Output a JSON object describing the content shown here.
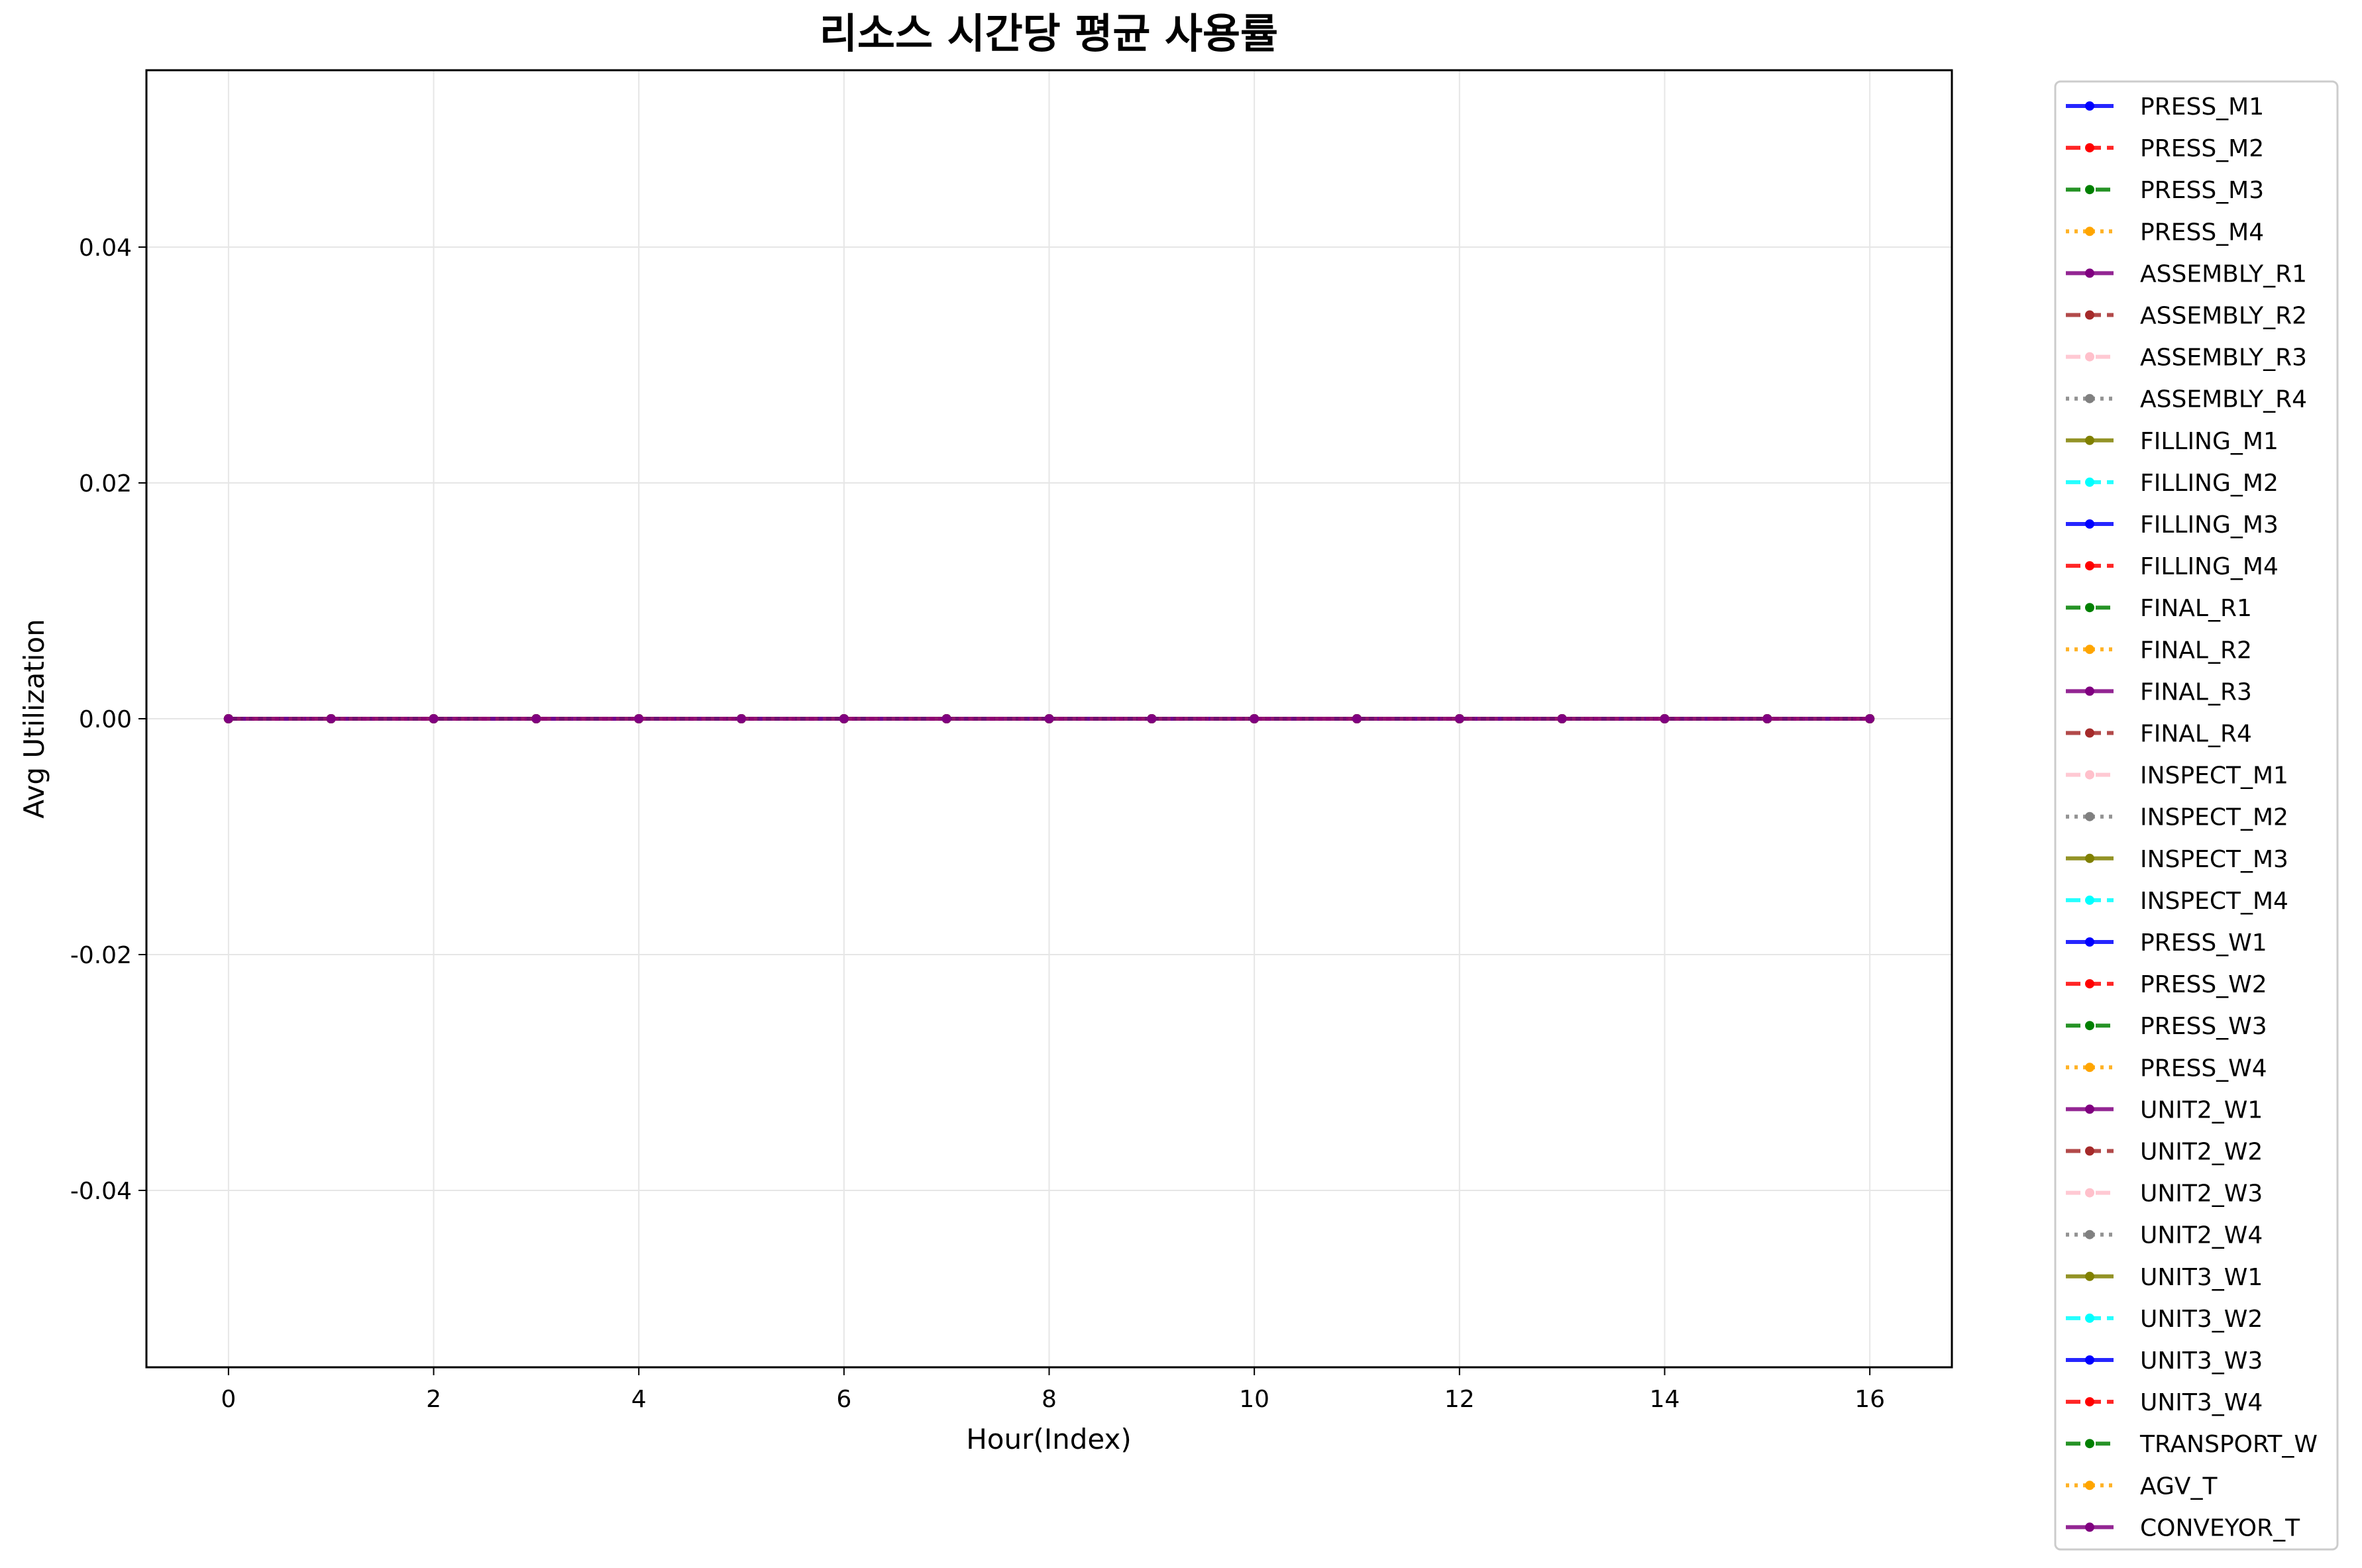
{
  "chart_data": {
    "type": "line",
    "title": "리소스 시간당 평균 사용률",
    "xlabel": "Hour(Index)",
    "ylabel": "Avg Utilization",
    "xlim": [
      -0.8,
      16.8
    ],
    "ylim": [
      -0.055,
      0.055
    ],
    "xticks": [
      0,
      2,
      4,
      6,
      8,
      10,
      12,
      14,
      16
    ],
    "yticks": [
      -0.04,
      -0.02,
      0.0,
      0.02,
      0.04
    ],
    "ytick_labels": [
      "-0.04",
      "-0.02",
      "0.00",
      "0.02",
      "0.04"
    ],
    "grid": true,
    "legend_position": "outside-right",
    "x": [
      0,
      1,
      2,
      3,
      4,
      5,
      6,
      7,
      8,
      9,
      10,
      11,
      12,
      13,
      14,
      15,
      16
    ],
    "series": [
      {
        "name": "PRESS_M1",
        "color": "#0000ff",
        "dash": "solid",
        "values": [
          0,
          0,
          0,
          0,
          0,
          0,
          0,
          0,
          0,
          0,
          0,
          0,
          0,
          0,
          0,
          0,
          0
        ]
      },
      {
        "name": "PRESS_M2",
        "color": "#ff0000",
        "dash": "dashed",
        "values": [
          0,
          0,
          0,
          0,
          0,
          0,
          0,
          0,
          0,
          0,
          0,
          0,
          0,
          0,
          0,
          0,
          0
        ]
      },
      {
        "name": "PRESS_M3",
        "color": "#008000",
        "dash": "dashdot",
        "values": [
          0,
          0,
          0,
          0,
          0,
          0,
          0,
          0,
          0,
          0,
          0,
          0,
          0,
          0,
          0,
          0,
          0
        ]
      },
      {
        "name": "PRESS_M4",
        "color": "#ffa500",
        "dash": "dotted",
        "values": [
          0,
          0,
          0,
          0,
          0,
          0,
          0,
          0,
          0,
          0,
          0,
          0,
          0,
          0,
          0,
          0,
          0
        ]
      },
      {
        "name": "ASSEMBLY_R1",
        "color": "#800080",
        "dash": "solid",
        "values": [
          0,
          0,
          0,
          0,
          0,
          0,
          0,
          0,
          0,
          0,
          0,
          0,
          0,
          0,
          0,
          0,
          0
        ]
      },
      {
        "name": "ASSEMBLY_R2",
        "color": "#a52a2a",
        "dash": "dashed",
        "values": [
          0,
          0,
          0,
          0,
          0,
          0,
          0,
          0,
          0,
          0,
          0,
          0,
          0,
          0,
          0,
          0,
          0
        ]
      },
      {
        "name": "ASSEMBLY_R3",
        "color": "#ffc0cb",
        "dash": "dashdot",
        "values": [
          0,
          0,
          0,
          0,
          0,
          0,
          0,
          0,
          0,
          0,
          0,
          0,
          0,
          0,
          0,
          0,
          0
        ]
      },
      {
        "name": "ASSEMBLY_R4",
        "color": "#808080",
        "dash": "dotted",
        "values": [
          0,
          0,
          0,
          0,
          0,
          0,
          0,
          0,
          0,
          0,
          0,
          0,
          0,
          0,
          0,
          0,
          0
        ]
      },
      {
        "name": "FILLING_M1",
        "color": "#808000",
        "dash": "solid",
        "values": [
          0,
          0,
          0,
          0,
          0,
          0,
          0,
          0,
          0,
          0,
          0,
          0,
          0,
          0,
          0,
          0,
          0
        ]
      },
      {
        "name": "FILLING_M2",
        "color": "#00ffff",
        "dash": "dashed",
        "values": [
          0,
          0,
          0,
          0,
          0,
          0,
          0,
          0,
          0,
          0,
          0,
          0,
          0,
          0,
          0,
          0,
          0
        ]
      },
      {
        "name": "FILLING_M3",
        "color": "#0000ff",
        "dash": "solid",
        "values": [
          0,
          0,
          0,
          0,
          0,
          0,
          0,
          0,
          0,
          0,
          0,
          0,
          0,
          0,
          0,
          0,
          0
        ]
      },
      {
        "name": "FILLING_M4",
        "color": "#ff0000",
        "dash": "dashed",
        "values": [
          0,
          0,
          0,
          0,
          0,
          0,
          0,
          0,
          0,
          0,
          0,
          0,
          0,
          0,
          0,
          0,
          0
        ]
      },
      {
        "name": "FINAL_R1",
        "color": "#008000",
        "dash": "dashdot",
        "values": [
          0,
          0,
          0,
          0,
          0,
          0,
          0,
          0,
          0,
          0,
          0,
          0,
          0,
          0,
          0,
          0,
          0
        ]
      },
      {
        "name": "FINAL_R2",
        "color": "#ffa500",
        "dash": "dotted",
        "values": [
          0,
          0,
          0,
          0,
          0,
          0,
          0,
          0,
          0,
          0,
          0,
          0,
          0,
          0,
          0,
          0,
          0
        ]
      },
      {
        "name": "FINAL_R3",
        "color": "#800080",
        "dash": "solid",
        "values": [
          0,
          0,
          0,
          0,
          0,
          0,
          0,
          0,
          0,
          0,
          0,
          0,
          0,
          0,
          0,
          0,
          0
        ]
      },
      {
        "name": "FINAL_R4",
        "color": "#a52a2a",
        "dash": "dashed",
        "values": [
          0,
          0,
          0,
          0,
          0,
          0,
          0,
          0,
          0,
          0,
          0,
          0,
          0,
          0,
          0,
          0,
          0
        ]
      },
      {
        "name": "INSPECT_M1",
        "color": "#ffc0cb",
        "dash": "dashdot",
        "values": [
          0,
          0,
          0,
          0,
          0,
          0,
          0,
          0,
          0,
          0,
          0,
          0,
          0,
          0,
          0,
          0,
          0
        ]
      },
      {
        "name": "INSPECT_M2",
        "color": "#808080",
        "dash": "dotted",
        "values": [
          0,
          0,
          0,
          0,
          0,
          0,
          0,
          0,
          0,
          0,
          0,
          0,
          0,
          0,
          0,
          0,
          0
        ]
      },
      {
        "name": "INSPECT_M3",
        "color": "#808000",
        "dash": "solid",
        "values": [
          0,
          0,
          0,
          0,
          0,
          0,
          0,
          0,
          0,
          0,
          0,
          0,
          0,
          0,
          0,
          0,
          0
        ]
      },
      {
        "name": "INSPECT_M4",
        "color": "#00ffff",
        "dash": "dashed",
        "values": [
          0,
          0,
          0,
          0,
          0,
          0,
          0,
          0,
          0,
          0,
          0,
          0,
          0,
          0,
          0,
          0,
          0
        ]
      },
      {
        "name": "PRESS_W1",
        "color": "#0000ff",
        "dash": "solid",
        "values": [
          0,
          0,
          0,
          0,
          0,
          0,
          0,
          0,
          0,
          0,
          0,
          0,
          0,
          0,
          0,
          0,
          0
        ]
      },
      {
        "name": "PRESS_W2",
        "color": "#ff0000",
        "dash": "dashed",
        "values": [
          0,
          0,
          0,
          0,
          0,
          0,
          0,
          0,
          0,
          0,
          0,
          0,
          0,
          0,
          0,
          0,
          0
        ]
      },
      {
        "name": "PRESS_W3",
        "color": "#008000",
        "dash": "dashdot",
        "values": [
          0,
          0,
          0,
          0,
          0,
          0,
          0,
          0,
          0,
          0,
          0,
          0,
          0,
          0,
          0,
          0,
          0
        ]
      },
      {
        "name": "PRESS_W4",
        "color": "#ffa500",
        "dash": "dotted",
        "values": [
          0,
          0,
          0,
          0,
          0,
          0,
          0,
          0,
          0,
          0,
          0,
          0,
          0,
          0,
          0,
          0,
          0
        ]
      },
      {
        "name": "UNIT2_W1",
        "color": "#800080",
        "dash": "solid",
        "values": [
          0,
          0,
          0,
          0,
          0,
          0,
          0,
          0,
          0,
          0,
          0,
          0,
          0,
          0,
          0,
          0,
          0
        ]
      },
      {
        "name": "UNIT2_W2",
        "color": "#a52a2a",
        "dash": "dashed",
        "values": [
          0,
          0,
          0,
          0,
          0,
          0,
          0,
          0,
          0,
          0,
          0,
          0,
          0,
          0,
          0,
          0,
          0
        ]
      },
      {
        "name": "UNIT2_W3",
        "color": "#ffc0cb",
        "dash": "dashdot",
        "values": [
          0,
          0,
          0,
          0,
          0,
          0,
          0,
          0,
          0,
          0,
          0,
          0,
          0,
          0,
          0,
          0,
          0
        ]
      },
      {
        "name": "UNIT2_W4",
        "color": "#808080",
        "dash": "dotted",
        "values": [
          0,
          0,
          0,
          0,
          0,
          0,
          0,
          0,
          0,
          0,
          0,
          0,
          0,
          0,
          0,
          0,
          0
        ]
      },
      {
        "name": "UNIT3_W1",
        "color": "#808000",
        "dash": "solid",
        "values": [
          0,
          0,
          0,
          0,
          0,
          0,
          0,
          0,
          0,
          0,
          0,
          0,
          0,
          0,
          0,
          0,
          0
        ]
      },
      {
        "name": "UNIT3_W2",
        "color": "#00ffff",
        "dash": "dashed",
        "values": [
          0,
          0,
          0,
          0,
          0,
          0,
          0,
          0,
          0,
          0,
          0,
          0,
          0,
          0,
          0,
          0,
          0
        ]
      },
      {
        "name": "UNIT3_W3",
        "color": "#0000ff",
        "dash": "solid",
        "values": [
          0,
          0,
          0,
          0,
          0,
          0,
          0,
          0,
          0,
          0,
          0,
          0,
          0,
          0,
          0,
          0,
          0
        ]
      },
      {
        "name": "UNIT3_W4",
        "color": "#ff0000",
        "dash": "dashed",
        "values": [
          0,
          0,
          0,
          0,
          0,
          0,
          0,
          0,
          0,
          0,
          0,
          0,
          0,
          0,
          0,
          0,
          0
        ]
      },
      {
        "name": "TRANSPORT_W",
        "color": "#008000",
        "dash": "dashdot",
        "values": [
          0,
          0,
          0,
          0,
          0,
          0,
          0,
          0,
          0,
          0,
          0,
          0,
          0,
          0,
          0,
          0,
          0
        ]
      },
      {
        "name": "AGV_T",
        "color": "#ffa500",
        "dash": "dotted",
        "values": [
          0,
          0,
          0,
          0,
          0,
          0,
          0,
          0,
          0,
          0,
          0,
          0,
          0,
          0,
          0,
          0,
          0
        ]
      },
      {
        "name": "CONVEYOR_T",
        "color": "#800080",
        "dash": "solid",
        "values": [
          0,
          0,
          0,
          0,
          0,
          0,
          0,
          0,
          0,
          0,
          0,
          0,
          0,
          0,
          0,
          0,
          0
        ]
      }
    ]
  }
}
